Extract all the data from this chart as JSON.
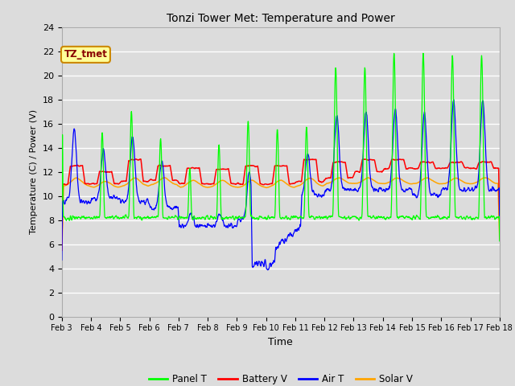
{
  "title": "Tonzi Tower Met: Temperature and Power",
  "xlabel": "Time",
  "ylabel": "Temperature (C) / Power (V)",
  "xlim": [
    0,
    15
  ],
  "ylim": [
    0,
    24
  ],
  "yticks": [
    0,
    2,
    4,
    6,
    8,
    10,
    12,
    14,
    16,
    18,
    20,
    22,
    24
  ],
  "xtick_labels": [
    "Feb 3",
    "Feb 4",
    "Feb 5",
    "Feb 6",
    "Feb 7",
    "Feb 8",
    "Feb 9",
    "Feb 10",
    "Feb 11",
    "Feb 12",
    "Feb 13",
    "Feb 14",
    "Feb 15",
    "Feb 16",
    "Feb 17",
    "Feb 18"
  ],
  "bg_color": "#dcdcdc",
  "plot_bg_color": "#dcdcdc",
  "grid_color": "#ffffff",
  "colors": {
    "panel_t": "#00ff00",
    "battery_v": "#ff0000",
    "air_t": "#0000ff",
    "solar_v": "#ffa500"
  },
  "annotation_text": "TZ_tmet",
  "annotation_bg": "#ffff99",
  "annotation_border": "#cc8800",
  "legend_labels": [
    "Panel T",
    "Battery V",
    "Air T",
    "Solar V"
  ]
}
